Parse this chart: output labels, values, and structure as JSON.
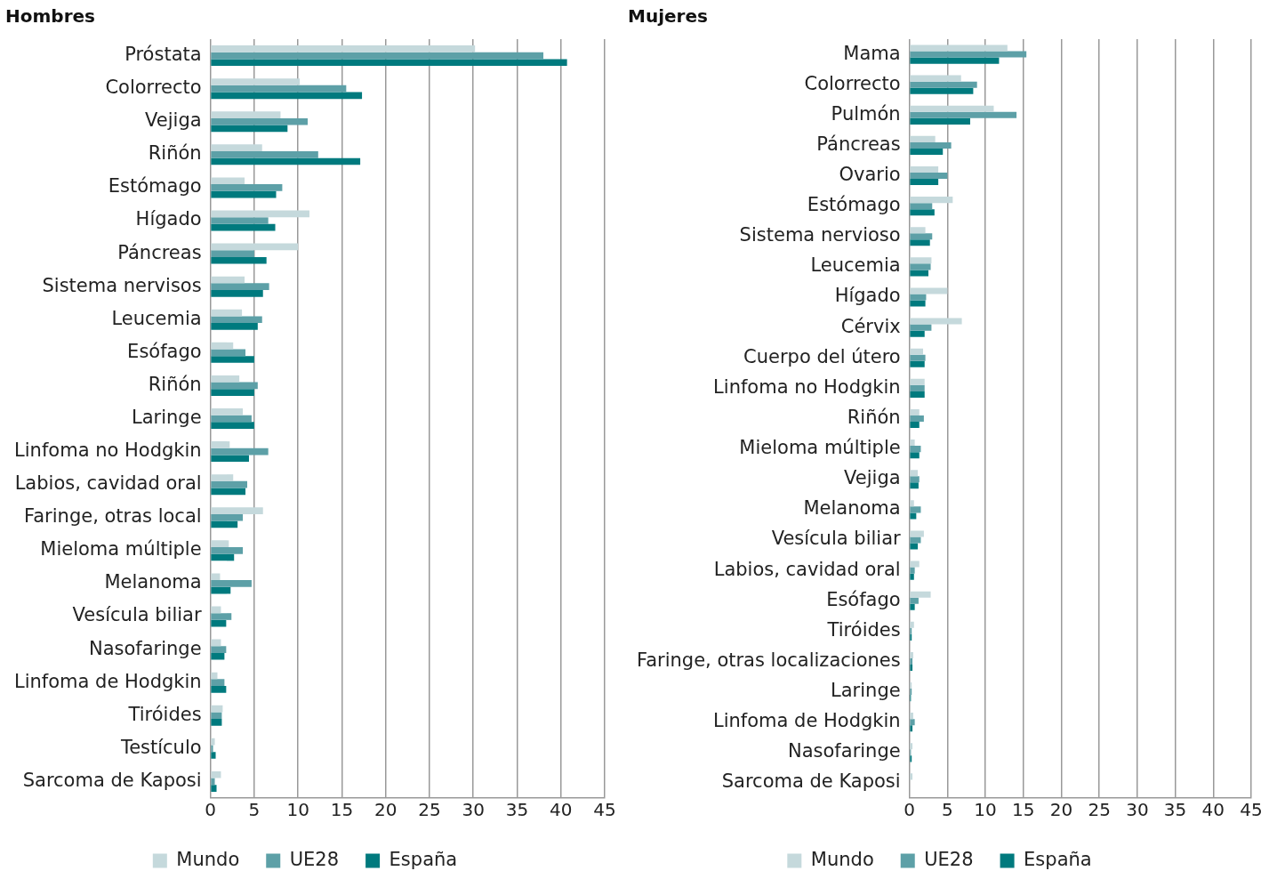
{
  "chart_data": [
    {
      "type": "bar",
      "orientation": "horizontal",
      "title": "Hombres",
      "categories": [
        "Próstata",
        "Colorrecto",
        "Vejiga",
        "Riñón",
        "Estómago",
        "Hígado",
        "Páncreas",
        "Sistema nervisos",
        "Leucemia",
        "Esófago",
        "Riñón",
        "Laringe",
        "Linfoma no Hodgkin",
        "Labios, cavidad oral",
        "Faringe, otras local",
        "Mieloma múltiple",
        "Melanoma",
        "Vesícula biliar",
        "Nasofaringe",
        "Linfoma de Hodgkin",
        "Tiróides",
        "Testículo",
        "Sarcoma de Kaposi"
      ],
      "series": [
        {
          "name": "Mundo",
          "color": "#c5d9dc",
          "values": [
            30.2,
            10.2,
            8.0,
            5.9,
            3.9,
            11.3,
            10.0,
            3.9,
            3.6,
            2.6,
            3.3,
            3.7,
            2.2,
            2.6,
            6.0,
            2.1,
            1.1,
            1.2,
            1.2,
            0.8,
            1.4,
            0.5,
            1.2
          ]
        },
        {
          "name": "UE28",
          "color": "#5da0a7",
          "values": [
            38.0,
            15.5,
            11.1,
            12.3,
            8.2,
            6.6,
            5.0,
            6.7,
            5.9,
            4.0,
            5.4,
            4.7,
            6.6,
            4.2,
            3.7,
            3.7,
            4.7,
            2.4,
            1.8,
            1.6,
            1.3,
            0.3,
            0.5
          ]
        },
        {
          "name": "España",
          "color": "#007a7e",
          "values": [
            40.7,
            17.3,
            8.8,
            17.1,
            7.5,
            7.4,
            6.4,
            6.0,
            5.4,
            5.0,
            5.0,
            5.0,
            4.4,
            4.0,
            3.1,
            2.7,
            2.3,
            1.8,
            1.6,
            1.8,
            1.3,
            0.6,
            0.7
          ]
        }
      ],
      "xlim": [
        0,
        45
      ],
      "xticks": [
        0,
        5,
        10,
        15,
        20,
        25,
        30,
        35,
        40,
        45
      ],
      "grid": "x",
      "legend": "bottom"
    },
    {
      "type": "bar",
      "orientation": "horizontal",
      "title": "Mujeres",
      "categories": [
        "Mama",
        "Colorrecto",
        "Pulmón",
        "Páncreas",
        "Ovario",
        "Estómago",
        "Sistema nervioso",
        "Leucemia",
        "Hígado",
        "Cérvix",
        "Cuerpo del útero",
        "Linfoma no Hodgkin",
        "Riñón",
        "Mieloma múltiple",
        "Vejiga",
        "Melanoma",
        "Vesícula biliar",
        "Labios, cavidad oral",
        "Esófago",
        "Tiróides",
        "Faringe, otras localizaciones",
        "Laringe",
        "Linfoma de Hodgkin",
        "Nasofaringe",
        "Sarcoma de Kaposi"
      ],
      "series": [
        {
          "name": "Mundo",
          "color": "#c5d9dc",
          "values": [
            12.9,
            6.8,
            11.1,
            3.4,
            3.8,
            5.7,
            2.1,
            2.9,
            5.0,
            6.9,
            1.8,
            2.0,
            1.3,
            0.7,
            1.1,
            0.6,
            1.9,
            1.3,
            2.8,
            0.6,
            0.5,
            0.3,
            0.5,
            0.4,
            0.4
          ]
        },
        {
          "name": "UE28",
          "color": "#5da0a7",
          "values": [
            15.4,
            8.9,
            14.1,
            5.5,
            5.0,
            3.0,
            3.0,
            2.8,
            2.2,
            2.9,
            2.1,
            2.0,
            1.9,
            1.5,
            1.3,
            1.5,
            1.5,
            0.7,
            1.2,
            0.3,
            0.4,
            0.3,
            0.7,
            0.2,
            null
          ]
        },
        {
          "name": "España",
          "color": "#007a7e",
          "values": [
            11.8,
            8.4,
            8.0,
            4.4,
            3.8,
            3.3,
            2.7,
            2.5,
            2.1,
            2.0,
            2.0,
            2.0,
            1.3,
            1.3,
            1.2,
            0.9,
            1.1,
            0.6,
            0.7,
            0.3,
            0.4,
            0.2,
            0.4,
            0.3,
            null
          ]
        }
      ],
      "xlim": [
        0,
        45
      ],
      "xticks": [
        0,
        5,
        10,
        15,
        20,
        25,
        30,
        35,
        40,
        45
      ],
      "grid": "x",
      "legend": "bottom"
    }
  ]
}
